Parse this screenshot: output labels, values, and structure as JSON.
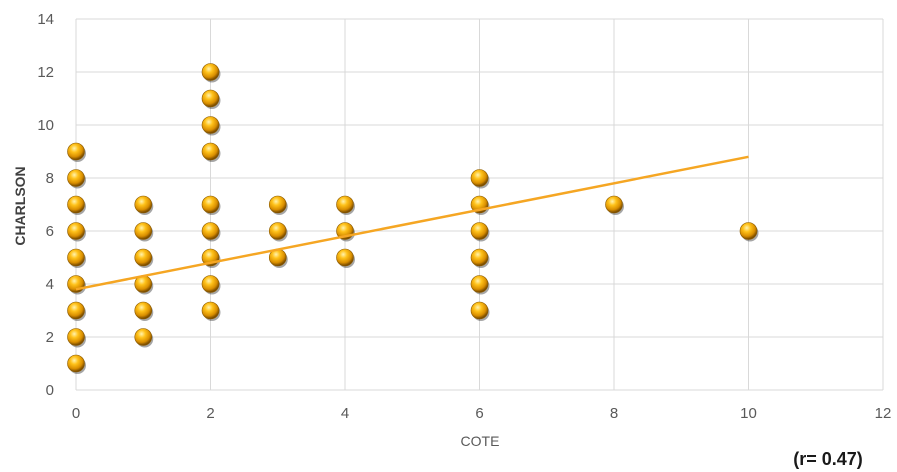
{
  "chart_data": {
    "type": "scatter",
    "xlabel": "COTE",
    "ylabel": "CHARLSON",
    "xlim": [
      0,
      12
    ],
    "ylim": [
      0,
      14
    ],
    "x_ticks": [
      0,
      2,
      4,
      6,
      8,
      10,
      12
    ],
    "y_ticks": [
      0,
      2,
      4,
      6,
      8,
      10,
      12,
      14
    ],
    "grid": true,
    "legend": "none",
    "annotation": "(r= 0.47)",
    "colors": {
      "marker": "#f0a800",
      "marker_highlight": "#ffe680",
      "marker_shadow": "#8a5a00",
      "trendline": "#f5a623",
      "grid": "#d9d9d9"
    },
    "points": [
      {
        "x": 0,
        "y": 1
      },
      {
        "x": 0,
        "y": 2
      },
      {
        "x": 0,
        "y": 3
      },
      {
        "x": 0,
        "y": 4
      },
      {
        "x": 0,
        "y": 5
      },
      {
        "x": 0,
        "y": 6
      },
      {
        "x": 0,
        "y": 7
      },
      {
        "x": 0,
        "y": 8
      },
      {
        "x": 0,
        "y": 9
      },
      {
        "x": 1,
        "y": 2
      },
      {
        "x": 1,
        "y": 3
      },
      {
        "x": 1,
        "y": 4
      },
      {
        "x": 1,
        "y": 5
      },
      {
        "x": 1,
        "y": 6
      },
      {
        "x": 1,
        "y": 7
      },
      {
        "x": 2,
        "y": 3
      },
      {
        "x": 2,
        "y": 4
      },
      {
        "x": 2,
        "y": 5
      },
      {
        "x": 2,
        "y": 6
      },
      {
        "x": 2,
        "y": 7
      },
      {
        "x": 2,
        "y": 9
      },
      {
        "x": 2,
        "y": 10
      },
      {
        "x": 2,
        "y": 11
      },
      {
        "x": 2,
        "y": 12
      },
      {
        "x": 3,
        "y": 5
      },
      {
        "x": 3,
        "y": 6
      },
      {
        "x": 3,
        "y": 7
      },
      {
        "x": 4,
        "y": 5
      },
      {
        "x": 4,
        "y": 6
      },
      {
        "x": 4,
        "y": 7
      },
      {
        "x": 6,
        "y": 3
      },
      {
        "x": 6,
        "y": 4
      },
      {
        "x": 6,
        "y": 5
      },
      {
        "x": 6,
        "y": 6
      },
      {
        "x": 6,
        "y": 7
      },
      {
        "x": 6,
        "y": 8
      },
      {
        "x": 8,
        "y": 7
      },
      {
        "x": 10,
        "y": 6
      }
    ],
    "trendline": {
      "x": [
        0,
        10
      ],
      "y": [
        3.8,
        8.8
      ]
    }
  }
}
